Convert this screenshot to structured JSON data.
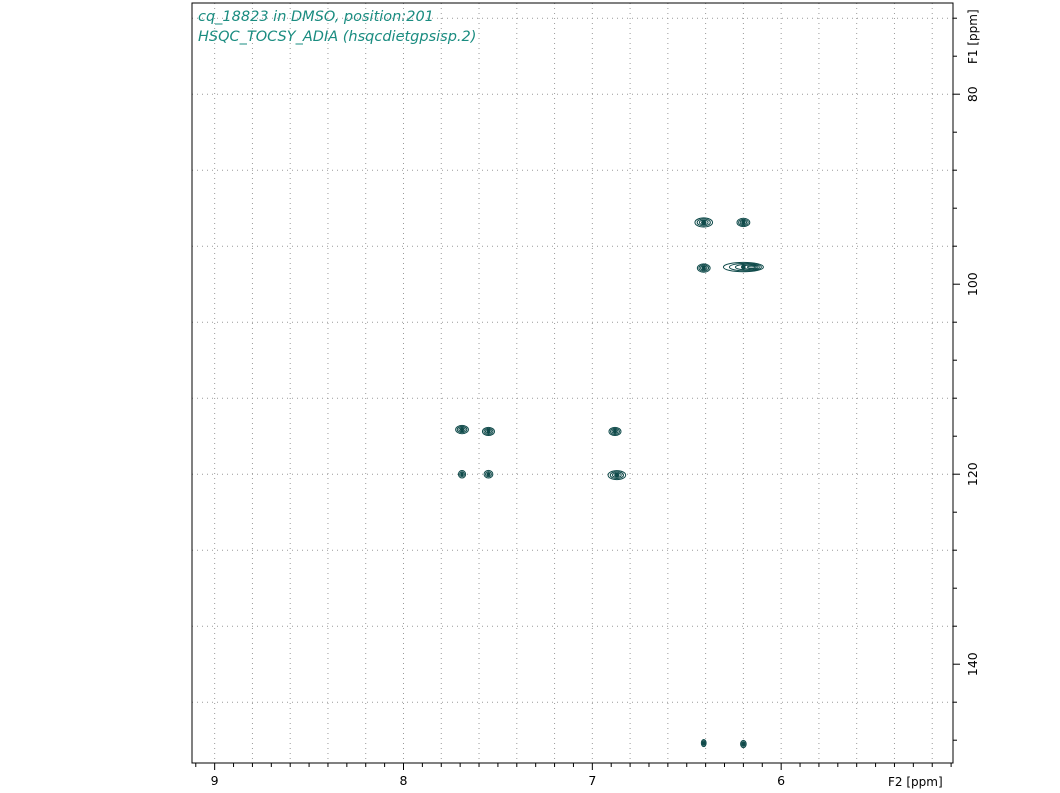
{
  "colors": {
    "background": "#ffffff",
    "frame": "#000000",
    "grid": "#9a9a9a",
    "title_text": "#1a8c80",
    "contour": "#0f4a4a"
  },
  "chart_data": {
    "type": "scatter",
    "title": "cq_18823 in DMSO, position:201",
    "subtitle": "HSQC_TOCSY_ADIA (hsqcdietgpsisp.2)",
    "xlabel": "F2 [ppm]",
    "ylabel": "F1 [ppm]",
    "xlim": [
      9.12,
      5.09
    ],
    "ylim": [
      70.4,
      150.4
    ],
    "x_reversed": true,
    "y_reversed": true,
    "x_ticks": [
      9,
      8,
      7,
      6
    ],
    "y_ticks": [
      80,
      100,
      120,
      140
    ],
    "x_tick_labels": [
      "9",
      "8",
      "7",
      "6"
    ],
    "y_tick_labels": [
      "80",
      "100",
      "120",
      "140"
    ],
    "grid": true,
    "grid_style": "dotted",
    "series": [
      {
        "x": [
          6.41,
          6.2,
          6.41,
          6.2,
          7.69,
          7.55,
          6.88,
          7.69,
          7.55,
          6.87,
          6.41,
          6.2
        ],
        "y": [
          93.5,
          93.5,
          98.3,
          98.2,
          115.3,
          115.5,
          115.5,
          120.0,
          120.0,
          120.1,
          148.3,
          148.4
        ],
        "sizes": [
          2.2,
          1.6,
          1.6,
          5.0,
          1.6,
          1.5,
          1.5,
          0.9,
          1.1,
          2.2,
          0.6,
          0.7
        ]
      }
    ]
  }
}
